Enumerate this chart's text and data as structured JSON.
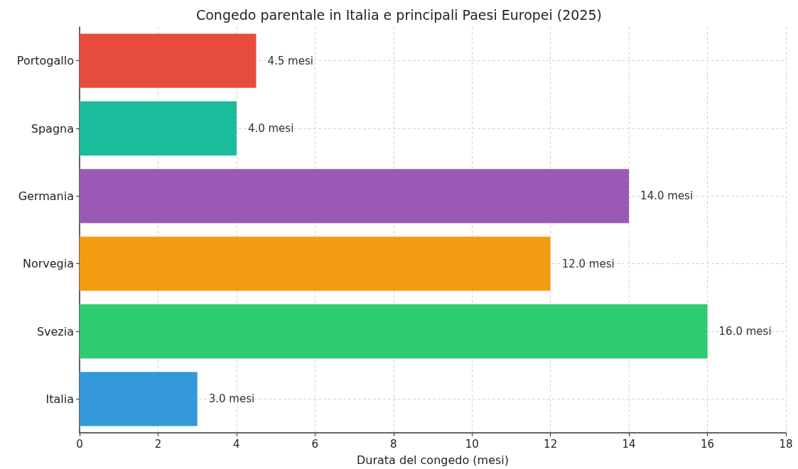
{
  "chart_data": {
    "type": "bar",
    "orientation": "horizontal",
    "title": "Congedo parentale in Italia e principali Paesi Europei (2025)",
    "xlabel": "Durata del congedo (mesi)",
    "categories": [
      "Portogallo",
      "Spagna",
      "Germania",
      "Norvegia",
      "Svezia",
      "Italia"
    ],
    "values": [
      4.5,
      4.0,
      14.0,
      12.0,
      16.0,
      3.0
    ],
    "colors": [
      "#e74c3c",
      "#1abc9c",
      "#9b59b6",
      "#f39c12",
      "#2ecc71",
      "#3498db"
    ],
    "value_labels": [
      "4.5 mesi",
      "4.0 mesi",
      "14.0 mesi",
      "12.0 mesi",
      "16.0 mesi",
      "3.0 mesi"
    ],
    "xlim": [
      0,
      18
    ],
    "xticks": [
      0,
      2,
      4,
      6,
      8,
      10,
      12,
      14,
      16,
      18
    ],
    "grid": true
  }
}
